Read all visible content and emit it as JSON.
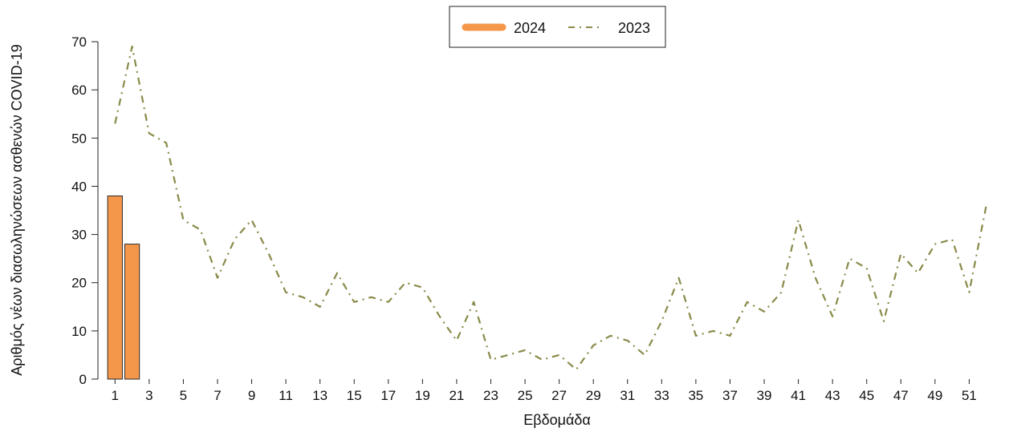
{
  "chart_data": {
    "type": "bar+line",
    "xlabel": "Εβδομάδα",
    "ylabel": "Αριθμός νέων διασωληνώσεων ασθενών COVID-19",
    "ylim": [
      0,
      70
    ],
    "yticks": [
      0,
      10,
      20,
      30,
      40,
      50,
      60,
      70
    ],
    "xlim": [
      0,
      53
    ],
    "xticks": [
      1,
      3,
      5,
      7,
      9,
      11,
      13,
      15,
      17,
      19,
      21,
      23,
      25,
      27,
      29,
      31,
      33,
      35,
      37,
      39,
      41,
      43,
      45,
      47,
      49,
      51
    ],
    "legend_position": "top-center",
    "colors": {
      "bar_2024": "#F5974A",
      "bar_edge": "#2a2a2a",
      "line_2023": "#8A8A4A"
    },
    "series": [
      {
        "name": "2024",
        "kind": "bar",
        "x": [
          1,
          2
        ],
        "values": [
          38,
          28
        ]
      },
      {
        "name": "2023",
        "kind": "line-dashdot",
        "x": [
          1,
          2,
          3,
          4,
          5,
          6,
          7,
          8,
          9,
          10,
          11,
          12,
          13,
          14,
          15,
          16,
          17,
          18,
          19,
          20,
          21,
          22,
          23,
          24,
          25,
          26,
          27,
          28,
          29,
          30,
          31,
          32,
          33,
          34,
          35,
          36,
          37,
          38,
          39,
          40,
          41,
          42,
          43,
          44,
          45,
          46,
          47,
          48,
          49,
          50,
          51,
          52
        ],
        "values": [
          53,
          69,
          51,
          49,
          33,
          31,
          21,
          29,
          33,
          26,
          18,
          17,
          15,
          22,
          16,
          17,
          16,
          20,
          19,
          13,
          8,
          16,
          4,
          5,
          6,
          4,
          5,
          2,
          7,
          9,
          8,
          5,
          12,
          21,
          9,
          10,
          9,
          16,
          14,
          18,
          33,
          21,
          13,
          25,
          23,
          12,
          26,
          22,
          28,
          29,
          18,
          36
        ]
      }
    ]
  }
}
